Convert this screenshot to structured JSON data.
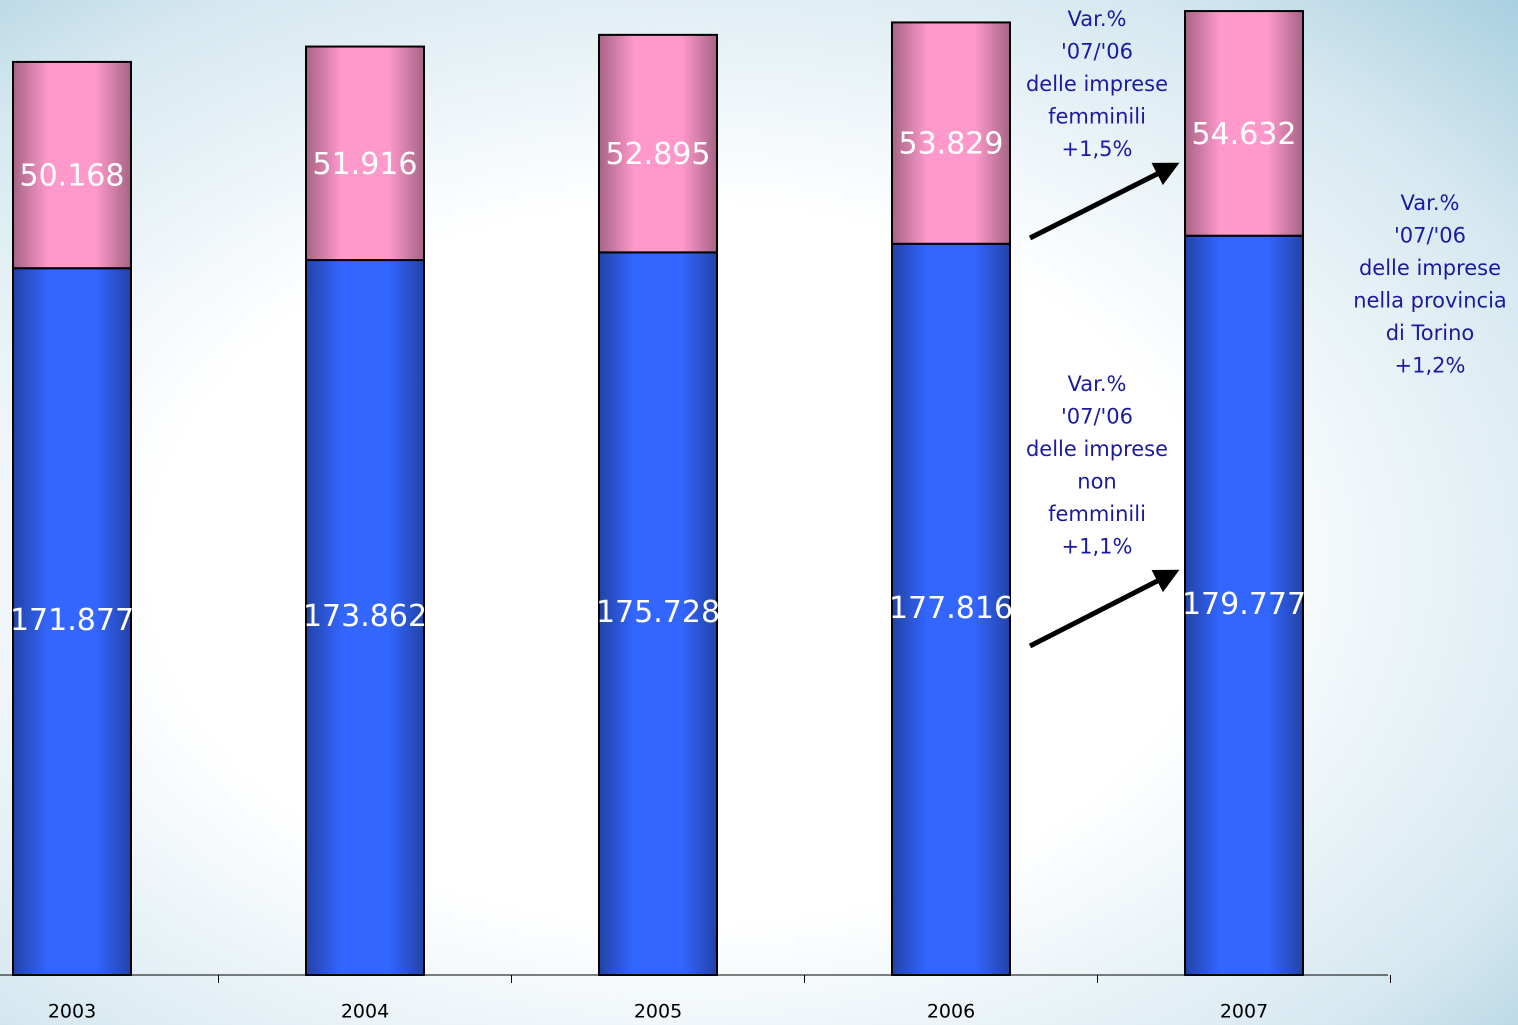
{
  "chart_data": {
    "type": "stacked_bar",
    "categories": [
      "2003",
      "2004",
      "2005",
      "2006",
      "2007"
    ],
    "series": [
      {
        "name": "non femminili",
        "color": "#3366ff",
        "values": [
          171877,
          173862,
          175728,
          177816,
          179777
        ],
        "value_labels": [
          "171.877",
          "173.862",
          "175.728",
          "177.816",
          "179.777"
        ]
      },
      {
        "name": "femminili",
        "color": "#ff99cc",
        "values": [
          50168,
          51916,
          52895,
          53829,
          54632
        ],
        "value_labels": [
          "50.168",
          "51.916",
          "52.895",
          "53.829",
          "54.632"
        ]
      }
    ],
    "ylim": [
      0,
      237100
    ],
    "annotations": [
      {
        "lines": [
          "Var.%",
          "'07/'06",
          "delle imprese",
          "femminili",
          "+1,5%"
        ]
      },
      {
        "lines": [
          "Var.%",
          "'07/'06",
          "delle imprese",
          "non",
          "femminili",
          "+1,1%"
        ]
      },
      {
        "lines": [
          "Var.%",
          "'07/'06",
          "delle imprese",
          "nella provincia",
          "di Torino",
          "+1,2%"
        ]
      }
    ]
  }
}
